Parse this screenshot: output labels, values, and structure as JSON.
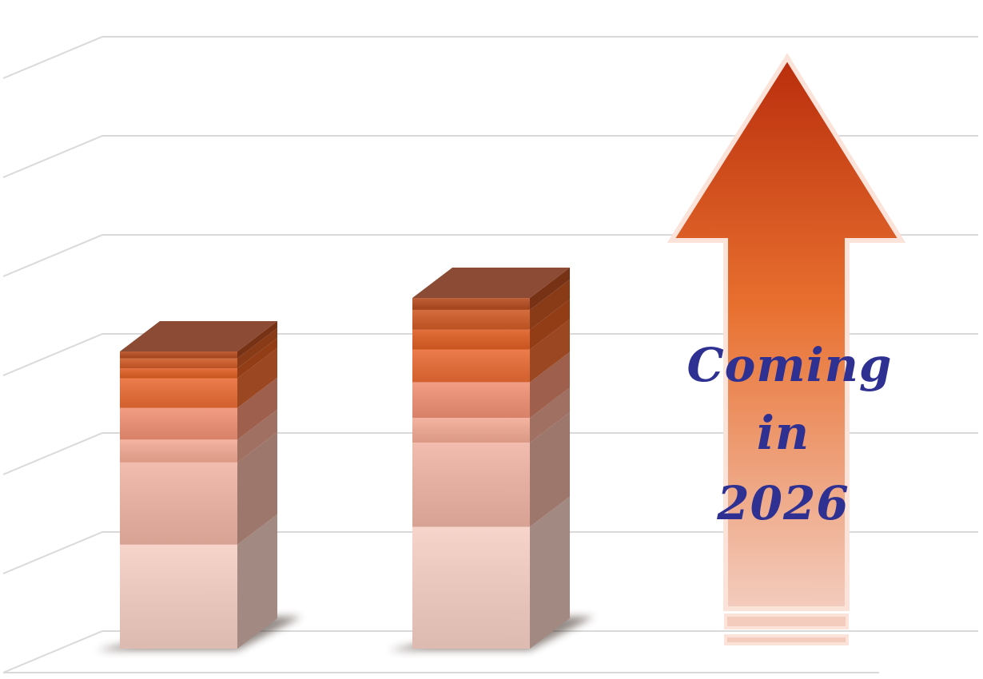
{
  "chart_data": {
    "type": "bar",
    "style": "3d-stacked-column",
    "title": "",
    "xlabel": "",
    "ylabel": "",
    "grid": true,
    "ylim": [
      0,
      6.75
    ],
    "categories": [
      "",
      "",
      ""
    ],
    "series": [
      {
        "values": [
          1.05,
          1.23,
          0
        ]
      },
      {
        "values": [
          0.83,
          0.85,
          0
        ]
      },
      {
        "values": [
          0.23,
          0.25,
          0
        ]
      },
      {
        "values": [
          0.32,
          0.36,
          0
        ]
      },
      {
        "values": [
          0.3,
          0.33,
          0
        ]
      },
      {
        "values": [
          0.1,
          0.2,
          0
        ]
      },
      {
        "values": [
          0.1,
          0.2,
          0
        ]
      },
      {
        "values": [
          0.07,
          0.12,
          0
        ]
      }
    ],
    "annotation": {
      "lines": [
        "Coming",
        "in",
        "2026"
      ],
      "shape": "up-arrow",
      "text_color": "#2f3192"
    },
    "colors": {
      "segment_fronts": [
        "#f6cfc4",
        "#f0b4a4",
        "#f3aa94",
        "#f09074",
        "#ea6b34",
        "#df5d22",
        "#cf5a25",
        "#b54a1e"
      ],
      "top": "#8b4b34",
      "grid": "#d9d9d9",
      "arrow_top": "#b92d0c",
      "arrow_mid": "#e8702f",
      "arrow_bottom": "#f3ccbe"
    }
  }
}
